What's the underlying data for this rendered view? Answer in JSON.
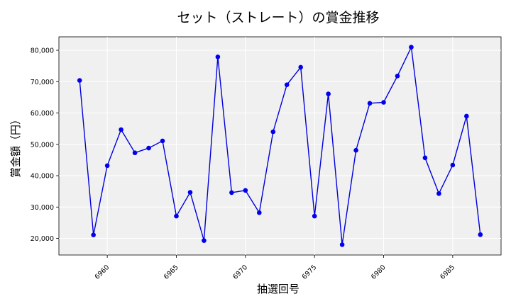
{
  "chart_data": {
    "type": "line",
    "title": "セット（ストレート）の賞金推移",
    "xlabel": "抽選回号",
    "ylabel": "賞金額（円）",
    "xlim": [
      6956.5,
      6988.5
    ],
    "ylim": [
      14700,
      84300
    ],
    "xticks": [
      6960,
      6965,
      6970,
      6975,
      6980,
      6985
    ],
    "xtick_labels": [
      "6960",
      "6965",
      "6970",
      "6975",
      "6980",
      "6985"
    ],
    "yticks": [
      20000,
      30000,
      40000,
      50000,
      60000,
      70000,
      80000
    ],
    "ytick_labels": [
      "20,000",
      "30,000",
      "40,000",
      "50,000",
      "60,000",
      "70,000",
      "80,000"
    ],
    "grid": true,
    "colors": {
      "line": "#0000dd",
      "marker": "#0000ee",
      "plot_bg": "#f0f0f0"
    },
    "x": [
      6958,
      6959,
      6960,
      6961,
      6962,
      6963,
      6964,
      6965,
      6966,
      6967,
      6968,
      6969,
      6970,
      6971,
      6972,
      6973,
      6974,
      6975,
      6976,
      6977,
      6978,
      6979,
      6980,
      6981,
      6982,
      6983,
      6984,
      6985,
      6986,
      6987
    ],
    "values": [
      70400,
      21100,
      43200,
      54700,
      47300,
      48800,
      51100,
      27100,
      34700,
      19300,
      77900,
      34600,
      35300,
      28200,
      54000,
      69000,
      74600,
      27100,
      66100,
      18000,
      48100,
      63100,
      63400,
      71800,
      81000,
      45700,
      34300,
      43400,
      59000,
      21200
    ]
  }
}
